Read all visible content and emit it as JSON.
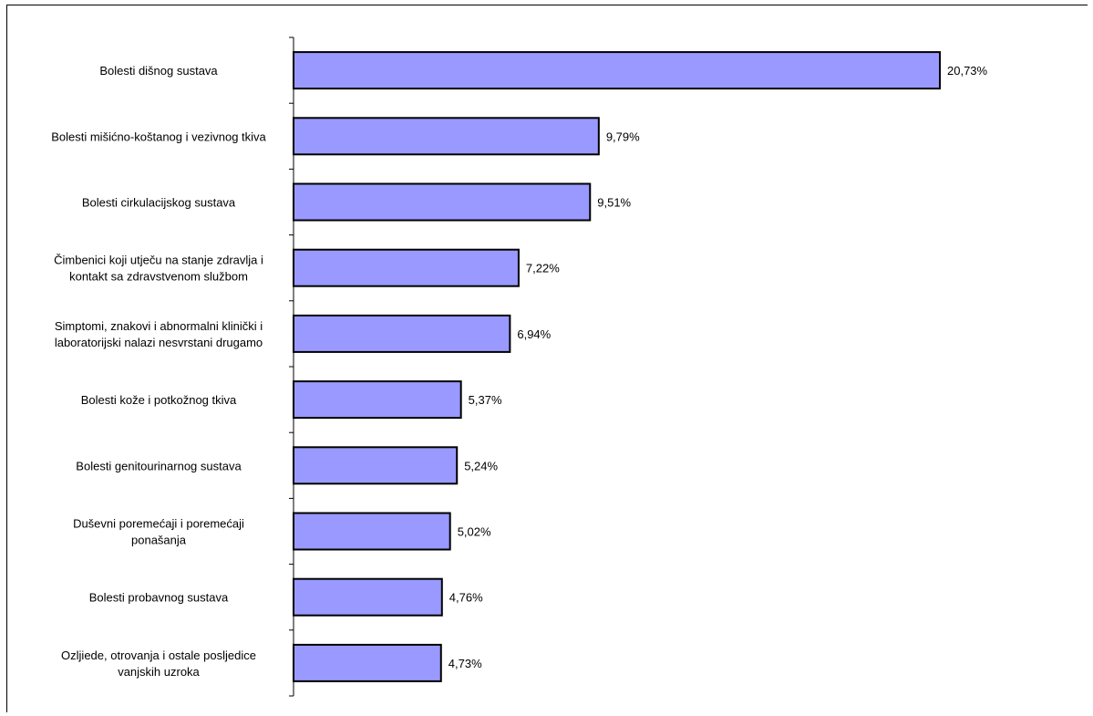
{
  "chart_data": {
    "type": "bar",
    "orientation": "horizontal",
    "title": "",
    "xlabel": "",
    "ylabel": "",
    "xlim": [
      0,
      20.73
    ],
    "grid": false,
    "legend": "none",
    "bar_color": "#9999ff",
    "bar_edge_color": "#000000",
    "categories": [
      [
        "Bolesti dišnog sustava"
      ],
      [
        "Bolesti mišićno-koštanog i vezivnog tkiva"
      ],
      [
        "Bolesti cirkulacijskog sustava"
      ],
      [
        "Čimbenici koji utječu na stanje zdravlja i",
        "kontakt sa zdravstvenom službom"
      ],
      [
        "Simptomi, znakovi i abnormalni klinički i",
        "laboratorijski nalazi nesvrstani drugamo"
      ],
      [
        "Bolesti kože i potkožnog tkiva"
      ],
      [
        "Bolesti genitourinarnog sustava"
      ],
      [
        "Duševni poremećaji i poremećaji",
        "ponašanja"
      ],
      [
        "Bolesti probavnog sustava"
      ],
      [
        "Ozljiede, otrovanja i ostale posljedice",
        "vanjskih uzroka"
      ]
    ],
    "values": [
      20.73,
      9.79,
      9.51,
      7.22,
      6.94,
      5.37,
      5.24,
      5.02,
      4.76,
      4.73
    ],
    "data_labels": [
      "20,73%",
      "9,79%",
      "9,51%",
      "7,22%",
      "6,94%",
      "5,37%",
      "5,24%",
      "5,02%",
      "4,76%",
      "4,73%"
    ]
  }
}
